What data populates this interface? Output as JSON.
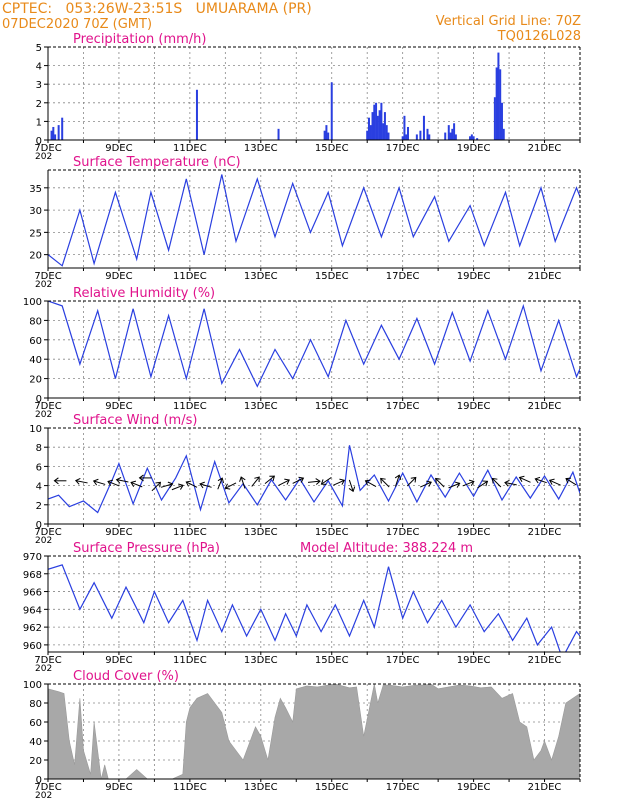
{
  "header": {
    "line1": "CPTEC:   053:26W-23:51S   UMUARAMA (PR)",
    "line2": "07DEC2020 70Z (GMT)",
    "right1": "Vertical Grid Line: 70Z",
    "right2": "TQ0126L028"
  },
  "colors": {
    "header": "#e88a1a",
    "title": "#e0138c",
    "series": "#2a3fe0",
    "cloud": "#a8a8a8",
    "grid": "#888888"
  },
  "x_axis": {
    "tick_labels": [
      "7DEC",
      "9DEC",
      "11DEC",
      "13DEC",
      "15DEC",
      "17DEC",
      "19DEC",
      "21DEC"
    ],
    "year_fragment": "202",
    "start_day": 7,
    "end_day": 22
  },
  "chart_data": [
    {
      "id": "precip",
      "type": "bar",
      "title": "Precipitation (mm/h)",
      "ylim": [
        0,
        5
      ],
      "yticks": [
        0,
        1,
        2,
        3,
        4,
        5
      ],
      "x": [
        7.1,
        7.15,
        7.2,
        7.3,
        7.4,
        11.2,
        13.5,
        14.8,
        14.85,
        14.9,
        15.0,
        16.0,
        16.05,
        16.1,
        16.15,
        16.2,
        16.25,
        16.3,
        16.35,
        16.4,
        16.45,
        16.5,
        16.55,
        16.6,
        17.0,
        17.05,
        17.1,
        17.15,
        17.4,
        17.5,
        17.6,
        17.7,
        17.75,
        18.2,
        18.3,
        18.35,
        18.4,
        18.45,
        18.5,
        18.9,
        18.95,
        19.0,
        19.1,
        19.6,
        19.65,
        19.7,
        19.75,
        19.8,
        19.85
      ],
      "values": [
        0.5,
        0.7,
        0.3,
        0.8,
        1.2,
        2.7,
        0.6,
        0.5,
        0.8,
        0.4,
        3.1,
        0.5,
        1.2,
        0.8,
        1.5,
        1.9,
        2.0,
        1.3,
        1.6,
        2.0,
        0.9,
        1.5,
        0.8,
        0.4,
        0.2,
        1.3,
        0.3,
        0.7,
        0.3,
        0.5,
        1.3,
        0.6,
        0.3,
        0.4,
        0.8,
        0.4,
        0.6,
        0.9,
        0.3,
        0.2,
        0.3,
        0.2,
        0.1,
        2.3,
        3.9,
        4.7,
        3.8,
        2.0,
        0.6
      ]
    },
    {
      "id": "temp",
      "type": "line",
      "title": "Surface Temperature (nC)",
      "ylim": [
        17,
        39
      ],
      "yticks": [
        20,
        25,
        30,
        35
      ],
      "x": [
        7.0,
        7.4,
        7.9,
        8.3,
        8.9,
        9.5,
        9.9,
        10.4,
        10.9,
        11.4,
        11.9,
        12.3,
        12.9,
        13.4,
        13.9,
        14.4,
        14.9,
        15.3,
        15.9,
        16.4,
        16.9,
        17.3,
        17.9,
        18.3,
        18.9,
        19.3,
        19.9,
        20.3,
        20.9,
        21.3,
        21.9,
        22.0
      ],
      "values": [
        20,
        17.5,
        30,
        18,
        34,
        19,
        34,
        21,
        37,
        20,
        38,
        23,
        37,
        24,
        36,
        25,
        34,
        22,
        35,
        24,
        35,
        24,
        33,
        23,
        31,
        22,
        34,
        22,
        35,
        23,
        35,
        33
      ]
    },
    {
      "id": "rh",
      "type": "line",
      "title": "Relative Humidity (%)",
      "ylim": [
        0,
        100
      ],
      "yticks": [
        0,
        20,
        40,
        60,
        80,
        100
      ],
      "x": [
        7.0,
        7.4,
        7.9,
        8.4,
        8.9,
        9.4,
        9.9,
        10.4,
        10.9,
        11.4,
        11.9,
        12.4,
        12.9,
        13.4,
        13.9,
        14.4,
        14.9,
        15.4,
        15.9,
        16.4,
        16.9,
        17.4,
        17.9,
        18.4,
        18.9,
        19.4,
        19.9,
        20.4,
        20.9,
        21.4,
        21.9,
        22.0
      ],
      "values": [
        100,
        95,
        35,
        90,
        20,
        92,
        22,
        85,
        20,
        92,
        15,
        50,
        12,
        50,
        20,
        60,
        22,
        80,
        35,
        75,
        40,
        82,
        35,
        88,
        38,
        90,
        40,
        95,
        28,
        80,
        22,
        30
      ]
    },
    {
      "id": "wind",
      "type": "line",
      "title": "Surface Wind (m/s)",
      "ylim": [
        0,
        10
      ],
      "yticks": [
        0,
        2,
        4,
        6,
        8,
        10
      ],
      "x": [
        7.0,
        7.3,
        7.6,
        8.0,
        8.4,
        8.8,
        9.0,
        9.4,
        9.8,
        10.2,
        10.6,
        10.9,
        11.3,
        11.7,
        12.1,
        12.5,
        12.9,
        13.3,
        13.7,
        14.1,
        14.5,
        14.9,
        15.3,
        15.5,
        15.8,
        16.2,
        16.6,
        17.0,
        17.4,
        17.8,
        18.2,
        18.6,
        19.0,
        19.4,
        19.8,
        20.2,
        20.6,
        21.0,
        21.4,
        21.8,
        22.0
      ],
      "values": [
        2.6,
        3.0,
        1.8,
        2.4,
        1.2,
        4.5,
        6.3,
        2.1,
        5.8,
        2.5,
        4.8,
        7.1,
        1.5,
        6.5,
        2.2,
        4.2,
        2.0,
        4.6,
        2.5,
        4.7,
        2.3,
        4.5,
        1.9,
        8.2,
        3.5,
        5.1,
        2.4,
        5.3,
        2.3,
        5.1,
        2.8,
        5.3,
        2.9,
        5.6,
        2.5,
        4.9,
        2.7,
        5.0,
        2.6,
        5.4,
        3.2
      ],
      "arrows_x": [
        7.35,
        7.95,
        8.45,
        8.85,
        9.1,
        9.5,
        9.75,
        10.05,
        10.35,
        10.65,
        11.05,
        11.45,
        11.85,
        12.15,
        12.5,
        12.85,
        13.25,
        13.65,
        14.05,
        14.5,
        14.85,
        15.2,
        15.55,
        16.1,
        16.5,
        16.85,
        17.25,
        17.65,
        18.05,
        18.45,
        18.85,
        19.25,
        19.65,
        20.05,
        20.45,
        20.9,
        21.3,
        21.75
      ],
      "arrows_y": [
        4.5,
        4.4,
        4.3,
        4.2,
        4.5,
        4.1,
        4.8,
        3.9,
        4.0,
        3.8,
        4.1,
        4.0,
        4.2,
        4.0,
        4.3,
        4.4,
        4.6,
        4.3,
        4.5,
        4.4,
        4.5,
        4.3,
        4.0,
        4.2,
        4.3,
        4.5,
        4.4,
        4.1,
        4.3,
        4.0,
        4.2,
        4.1,
        4.3,
        4.2,
        4.6,
        4.5,
        4.3,
        4.4
      ],
      "arrows_dx": [
        -1,
        -1,
        -1,
        -1,
        -1,
        -1,
        -1,
        0.5,
        1,
        1,
        -0.8,
        -1,
        0.2,
        -0.8,
        -0.2,
        0.4,
        0.5,
        0.8,
        0.6,
        1,
        -0.6,
        0.9,
        0.2,
        -0.9,
        -0.5,
        0.2,
        0.4,
        0.9,
        -0.4,
        1,
        1,
        0.6,
        -0.3,
        -1,
        -0.9,
        -0.9,
        -0.9,
        -0.8
      ],
      "arrows_dy": [
        0,
        0.2,
        0.3,
        0.4,
        0.2,
        0.4,
        0,
        0.5,
        0.3,
        0.4,
        0.4,
        0.3,
        0.5,
        -0.4,
        0.6,
        0.5,
        0.4,
        0.4,
        0.3,
        0.1,
        -0.4,
        0.4,
        -0.6,
        0.5,
        0.5,
        0.6,
        0.4,
        0.4,
        0.4,
        0.4,
        0.4,
        0.4,
        0.3,
        0.2,
        0.4,
        0.3,
        0.4,
        0.5
      ]
    },
    {
      "id": "press",
      "type": "line",
      "title": "Surface Pressure (hPa)",
      "subtitle": "Model Altitude: 388.224 m",
      "ylim": [
        959.2,
        970
      ],
      "yticks": [
        960,
        962,
        964,
        966,
        968,
        970
      ],
      "x": [
        7.0,
        7.4,
        7.9,
        8.3,
        8.8,
        9.2,
        9.7,
        10.0,
        10.4,
        10.8,
        11.2,
        11.5,
        11.9,
        12.2,
        12.6,
        13.0,
        13.4,
        13.7,
        14.0,
        14.3,
        14.7,
        15.1,
        15.5,
        15.9,
        16.2,
        16.6,
        17.0,
        17.3,
        17.7,
        18.1,
        18.5,
        18.9,
        19.3,
        19.7,
        20.1,
        20.5,
        20.8,
        21.2,
        21.5,
        21.9,
        22.0
      ],
      "values": [
        968.5,
        969.0,
        964.0,
        967.0,
        963.0,
        966.5,
        962.5,
        966.0,
        962.5,
        965.0,
        960.5,
        965.0,
        961.5,
        964.5,
        961.0,
        964.0,
        960.5,
        963.5,
        961.0,
        964.5,
        961.5,
        964.5,
        961.0,
        965.0,
        962.0,
        968.8,
        963.0,
        966.0,
        962.5,
        965.0,
        962.0,
        964.5,
        961.5,
        963.5,
        960.5,
        963.0,
        960.0,
        962.0,
        958.5,
        961.5,
        961.0
      ]
    },
    {
      "id": "cloud",
      "type": "area",
      "title": "Cloud Cover (%)",
      "ylim": [
        0,
        100
      ],
      "yticks": [
        0,
        20,
        40,
        60,
        80,
        100
      ],
      "x": [
        7.0,
        7.3,
        7.45,
        7.6,
        7.75,
        7.9,
        8.0,
        8.2,
        8.3,
        8.5,
        8.6,
        8.7,
        8.8,
        9.2,
        9.5,
        9.8,
        10.0,
        10.2,
        10.5,
        10.8,
        10.9,
        11.0,
        11.2,
        11.5,
        11.7,
        11.9,
        12.1,
        12.3,
        12.5,
        12.7,
        12.85,
        13.0,
        13.2,
        13.4,
        13.55,
        13.7,
        13.9,
        14.0,
        14.3,
        14.6,
        14.9,
        15.1,
        15.3,
        15.5,
        15.7,
        15.9,
        16.2,
        16.3,
        16.45,
        16.6,
        16.8,
        17.0,
        17.2,
        17.4,
        17.6,
        17.8,
        18.0,
        18.3,
        18.6,
        18.9,
        19.2,
        19.5,
        19.8,
        20.1,
        20.3,
        20.5,
        20.7,
        20.9,
        21.0,
        21.2,
        21.4,
        21.6,
        21.8,
        22.0
      ],
      "values": [
        95,
        92,
        90,
        40,
        15,
        85,
        30,
        5,
        60,
        0,
        15,
        0,
        0,
        0,
        10,
        0,
        0,
        0,
        0,
        5,
        60,
        75,
        85,
        90,
        80,
        70,
        40,
        30,
        20,
        40,
        55,
        45,
        20,
        65,
        85,
        75,
        60,
        95,
        98,
        97,
        99,
        100,
        98,
        96,
        97,
        45,
        100,
        80,
        99,
        99,
        98,
        97,
        98,
        99,
        99,
        100,
        95,
        97,
        99,
        98,
        96,
        97,
        85,
        90,
        60,
        55,
        20,
        30,
        40,
        20,
        45,
        80,
        85,
        90
      ]
    }
  ]
}
